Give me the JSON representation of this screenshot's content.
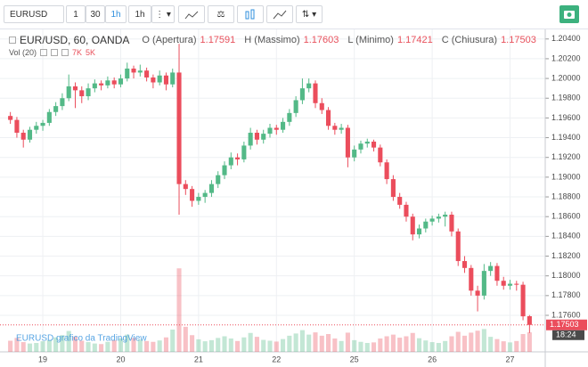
{
  "toolbar": {
    "symbol": "EURUSD",
    "buttons": [
      "1",
      "30",
      "1h",
      "1h"
    ]
  },
  "chart_data": {
    "type": "candlestick",
    "title": "EUR/USD, 60, OANDA",
    "ohlc_legend": [
      {
        "label": "O (Apertura)",
        "value": "1.17591"
      },
      {
        "label": "H (Massimo)",
        "value": "1.17603"
      },
      {
        "label": "L (Minimo)",
        "value": "1.17421"
      },
      {
        "label": "C (Chiusura)",
        "value": "1.17503"
      }
    ],
    "volume_legend": {
      "label": "Vol (20)",
      "values": [
        "7K",
        "5K"
      ]
    },
    "watermark": "EURUSD grafico da TradingView",
    "price_tag": "1.17503",
    "countdown": "18:24",
    "up_color": "#53b987",
    "down_color": "#eb4d5c",
    "grid": true,
    "ylim": [
      1.1723,
      1.2047
    ],
    "yticks": [
      {
        "value": 1.176,
        "label": "1.17600"
      },
      {
        "value": 1.178,
        "label": "1.17800"
      },
      {
        "value": 1.18,
        "label": "1.18000"
      },
      {
        "value": 1.182,
        "label": "1.18200"
      },
      {
        "value": 1.184,
        "label": "1.18400"
      },
      {
        "value": 1.186,
        "label": "1.18600"
      },
      {
        "value": 1.188,
        "label": "1.18800"
      },
      {
        "value": 1.19,
        "label": "1.19000"
      },
      {
        "value": 1.192,
        "label": "1.19200"
      },
      {
        "value": 1.194,
        "label": "1.19400"
      },
      {
        "value": 1.196,
        "label": "1.19600"
      },
      {
        "value": 1.198,
        "label": "1.19800"
      },
      {
        "value": 1.2,
        "label": "1.20000"
      },
      {
        "value": 1.202,
        "label": "1.20200"
      },
      {
        "value": 1.204,
        "label": "1.20400"
      }
    ],
    "volume_lim": [
      0,
      32000
    ],
    "categories": [
      null,
      null,
      null,
      null,
      null,
      "19",
      null,
      null,
      null,
      null,
      null,
      null,
      null,
      null,
      null,
      null,
      null,
      "20",
      null,
      null,
      null,
      null,
      null,
      null,
      null,
      null,
      null,
      null,
      null,
      "21",
      null,
      null,
      null,
      null,
      null,
      null,
      null,
      null,
      null,
      null,
      null,
      "22",
      null,
      null,
      null,
      null,
      null,
      null,
      null,
      null,
      null,
      null,
      null,
      "25",
      null,
      null,
      null,
      null,
      null,
      null,
      null,
      null,
      null,
      null,
      null,
      "26",
      null,
      null,
      null,
      null,
      null,
      null,
      null,
      null,
      null,
      null,
      null,
      "27",
      null,
      null,
      null
    ],
    "ohlc": [
      [
        1.1962,
        1.1966,
        1.1954,
        1.1958
      ],
      [
        1.1958,
        1.1961,
        1.194,
        1.1945
      ],
      [
        1.1945,
        1.1948,
        1.193,
        1.1938
      ],
      [
        1.1938,
        1.1951,
        1.1935,
        1.1948
      ],
      [
        1.1948,
        1.1956,
        1.1944,
        1.1952
      ],
      [
        1.1952,
        1.1958,
        1.1947,
        1.1955
      ],
      [
        1.1955,
        1.1969,
        1.1952,
        1.1966
      ],
      [
        1.1966,
        1.1976,
        1.1962,
        1.1972
      ],
      [
        1.1972,
        1.1985,
        1.1968,
        1.198
      ],
      [
        1.198,
        1.2004,
        1.1977,
        1.1992
      ],
      [
        1.1992,
        1.1996,
        1.197,
        1.1988
      ],
      [
        1.1988,
        1.1992,
        1.1975,
        1.1982
      ],
      [
        1.1982,
        1.1995,
        1.1978,
        1.199
      ],
      [
        1.199,
        1.1999,
        1.1986,
        1.1995
      ],
      [
        1.1995,
        1.1998,
        1.1988,
        1.1993
      ],
      [
        1.1993,
        1.2002,
        1.199,
        1.1998
      ],
      [
        1.1998,
        1.2001,
        1.199,
        1.1994
      ],
      [
        1.1994,
        1.2004,
        1.1991,
        1.2
      ],
      [
        1.2,
        1.2016,
        1.1997,
        1.201
      ],
      [
        1.201,
        1.2013,
        1.2,
        1.2006
      ],
      [
        1.2006,
        1.2014,
        1.2002,
        1.2008
      ],
      [
        1.2008,
        1.2011,
        1.1997,
        1.2001
      ],
      [
        1.2001,
        1.2004,
        1.199,
        1.1996
      ],
      [
        1.1996,
        1.2008,
        1.1993,
        1.2003
      ],
      [
        1.2003,
        1.2006,
        1.1988,
        1.1994
      ],
      [
        1.1994,
        1.201,
        1.1991,
        1.2006
      ],
      [
        1.2006,
        1.2035,
        1.1862,
        1.1893
      ],
      [
        1.1893,
        1.1897,
        1.1882,
        1.1888
      ],
      [
        1.1888,
        1.1891,
        1.187,
        1.1876
      ],
      [
        1.1876,
        1.1884,
        1.1872,
        1.188
      ],
      [
        1.188,
        1.1887,
        1.1874,
        1.1884
      ],
      [
        1.1884,
        1.1897,
        1.188,
        1.1893
      ],
      [
        1.1893,
        1.1906,
        1.1889,
        1.1902
      ],
      [
        1.1902,
        1.1916,
        1.1898,
        1.1912
      ],
      [
        1.1912,
        1.1925,
        1.1908,
        1.192
      ],
      [
        1.192,
        1.1924,
        1.1912,
        1.1918
      ],
      [
        1.1918,
        1.1936,
        1.1915,
        1.1932
      ],
      [
        1.1932,
        1.195,
        1.1928,
        1.1945
      ],
      [
        1.1945,
        1.1948,
        1.1933,
        1.1938
      ],
      [
        1.1938,
        1.1948,
        1.1934,
        1.1944
      ],
      [
        1.1944,
        1.1954,
        1.194,
        1.195
      ],
      [
        1.195,
        1.1953,
        1.1943,
        1.1948
      ],
      [
        1.1948,
        1.196,
        1.1945,
        1.1956
      ],
      [
        1.1956,
        1.1969,
        1.1952,
        1.1965
      ],
      [
        1.1965,
        1.1982,
        1.1961,
        1.1978
      ],
      [
        1.1978,
        1.2,
        1.1974,
        1.199
      ],
      [
        1.199,
        1.2,
        1.1986,
        1.1995
      ],
      [
        1.1995,
        1.1998,
        1.197,
        1.1975
      ],
      [
        1.1975,
        1.198,
        1.1964,
        1.1968
      ],
      [
        1.1968,
        1.1971,
        1.1948,
        1.1952
      ],
      [
        1.1952,
        1.1955,
        1.1943,
        1.1948
      ],
      [
        1.1948,
        1.1954,
        1.1944,
        1.195
      ],
      [
        1.195,
        1.1953,
        1.191,
        1.192
      ],
      [
        1.192,
        1.1932,
        1.1916,
        1.1928
      ],
      [
        1.1928,
        1.1937,
        1.1924,
        1.1934
      ],
      [
        1.1934,
        1.1939,
        1.193,
        1.1936
      ],
      [
        1.1936,
        1.1938,
        1.1926,
        1.193
      ],
      [
        1.193,
        1.1933,
        1.1911,
        1.1915
      ],
      [
        1.1915,
        1.1918,
        1.1893,
        1.1898
      ],
      [
        1.1898,
        1.1902,
        1.1876,
        1.188
      ],
      [
        1.188,
        1.1884,
        1.1868,
        1.1872
      ],
      [
        1.1872,
        1.1875,
        1.1855,
        1.186
      ],
      [
        1.186,
        1.1863,
        1.1836,
        1.1842
      ],
      [
        1.1842,
        1.1852,
        1.1838,
        1.1848
      ],
      [
        1.1848,
        1.1858,
        1.1844,
        1.1855
      ],
      [
        1.1855,
        1.1861,
        1.1851,
        1.1858
      ],
      [
        1.1858,
        1.1863,
        1.1854,
        1.186
      ],
      [
        1.186,
        1.1865,
        1.185,
        1.1862
      ],
      [
        1.1862,
        1.1865,
        1.184,
        1.1845
      ],
      [
        1.1845,
        1.1848,
        1.181,
        1.1815
      ],
      [
        1.1815,
        1.182,
        1.1803,
        1.1808
      ],
      [
        1.1808,
        1.1811,
        1.178,
        1.1785
      ],
      [
        1.1785,
        1.179,
        1.1764,
        1.178
      ],
      [
        1.178,
        1.1812,
        1.1776,
        1.1805
      ],
      [
        1.1805,
        1.1814,
        1.18,
        1.181
      ],
      [
        1.181,
        1.1813,
        1.179,
        1.1795
      ],
      [
        1.1795,
        1.1799,
        1.1786,
        1.179
      ],
      [
        1.179,
        1.1796,
        1.1786,
        1.1792
      ],
      [
        1.1792,
        1.1795,
        1.1785,
        1.1791
      ],
      [
        1.1791,
        1.1794,
        1.1755,
        1.1759
      ],
      [
        1.17591,
        1.17603,
        1.17421,
        1.17503
      ]
    ],
    "volume": [
      4000,
      5000,
      3500,
      3000,
      3200,
      3800,
      4200,
      5200,
      6000,
      7500,
      5500,
      4000,
      3500,
      3000,
      2800,
      3600,
      4200,
      4800,
      6200,
      5000,
      4400,
      3900,
      3600,
      4100,
      5200,
      8000,
      30000,
      9000,
      6000,
      4500,
      3800,
      4200,
      5000,
      5600,
      4800,
      3900,
      5200,
      6800,
      5400,
      4300,
      4000,
      3700,
      4600,
      5800,
      6600,
      7800,
      6200,
      7000,
      5800,
      6400,
      4800,
      3900,
      6900,
      4200,
      3600,
      3200,
      3400,
      4800,
      5600,
      6200,
      5100,
      5600,
      6800,
      4900,
      4100,
      3500,
      3200,
      3900,
      5600,
      7200,
      5800,
      6900,
      7600,
      8200,
      5400,
      4600,
      3800,
      3400,
      3900,
      6400,
      7000
    ]
  }
}
